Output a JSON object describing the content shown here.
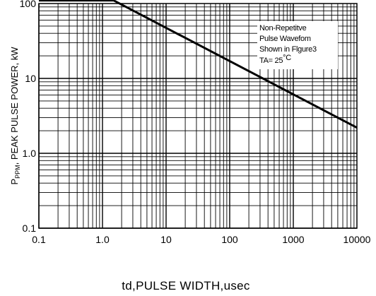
{
  "chart_data": {
    "type": "line",
    "xlabel": "td,PULSE WIDTH,usec",
    "ylabel_main": "P",
    "ylabel_sub": "PPM",
    "ylabel_rest": ", PEAK PULSE POWER, kW",
    "x_scale": "log",
    "y_scale": "log",
    "xlim": [
      0.1,
      10000
    ],
    "ylim": [
      0.1,
      100
    ],
    "x_ticks": [
      0.1,
      1,
      10,
      100,
      1000,
      10000
    ],
    "x_tick_labels": [
      "0.1",
      "1.0",
      "10",
      "100",
      "1000",
      "10000"
    ],
    "y_ticks": [
      0.1,
      1,
      10,
      100
    ],
    "y_tick_labels": [
      "0.1",
      "1.0",
      "10",
      "100"
    ],
    "grid": true,
    "series": [
      {
        "x": [
          0.1,
          1.5,
          10000
        ],
        "y": [
          110,
          110,
          2.2
        ]
      }
    ],
    "annotation": {
      "lines": [
        "Non-Repetitve",
        "Pulse Wavefom",
        "Shown in Flgure3"
      ],
      "temp_prefix": "TA= 25",
      "temp_unit": "°C"
    }
  }
}
